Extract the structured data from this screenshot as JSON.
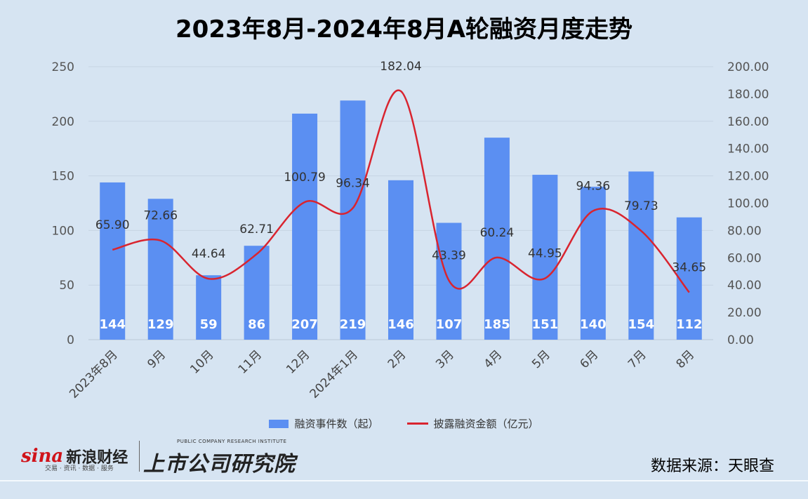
{
  "title": "2023年8月-2024年8月A轮融资月度走势",
  "chart_data": {
    "type": "bar",
    "categories": [
      "2023年8月",
      "9月",
      "10月",
      "11月",
      "12月",
      "2024年1月",
      "2月",
      "3月",
      "4月",
      "5月",
      "6月",
      "7月",
      "8月"
    ],
    "series": [
      {
        "name": "融资事件数（起）",
        "type": "bar",
        "axis": "left",
        "values": [
          144,
          129,
          59,
          86,
          207,
          219,
          146,
          107,
          185,
          151,
          140,
          154,
          112
        ]
      },
      {
        "name": "披露融资金额（亿元）",
        "type": "line",
        "axis": "right",
        "values": [
          65.9,
          72.66,
          44.64,
          62.71,
          100.79,
          96.34,
          182.04,
          43.39,
          60.24,
          44.95,
          94.36,
          79.73,
          34.65
        ]
      }
    ],
    "y_left": {
      "range": [
        0,
        250
      ],
      "ticks": [
        "0",
        "50",
        "100",
        "150",
        "200",
        "250"
      ]
    },
    "y_right": {
      "range": [
        0,
        200
      ],
      "ticks": [
        "0.00",
        "20.00",
        "40.00",
        "60.00",
        "80.00",
        "100.00",
        "120.00",
        "140.00",
        "160.00",
        "180.00",
        "200.00"
      ]
    },
    "line_labels": [
      "65.90",
      "72.66",
      "44.64",
      "62.71",
      "100.79",
      "96.34",
      "182.04",
      "43.39",
      "60.24",
      "44.95",
      "94.36",
      "79.73",
      "34.65"
    ],
    "grid": true,
    "legend_position": "bottom",
    "colors": {
      "bar": "#5b8ff2",
      "line": "#d9242f"
    }
  },
  "legend": {
    "bar_label": "融资事件数（起）",
    "line_label": "披露融资金额（亿元）"
  },
  "footer": {
    "brand_logo": "sina",
    "brand_cn": "新浪财经",
    "brand_sub": "交易 · 资讯 · 数据 · 服务",
    "institute_en": "PUBLIC COMPANY RESEARCH INSTITUTE",
    "institute_cn": "上市公司研究院",
    "source": "数据来源：天眼查"
  }
}
